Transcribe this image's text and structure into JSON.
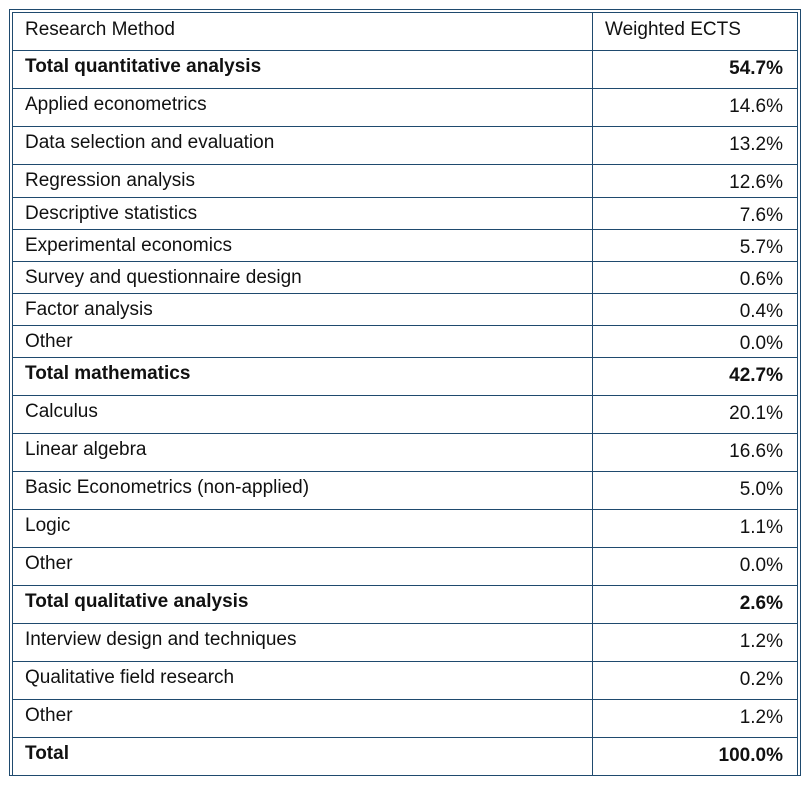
{
  "table": {
    "header": {
      "method": "Research Method",
      "value": "Weighted ECTS"
    },
    "rows": [
      {
        "label": "Total quantitative analysis",
        "value": "54.7%",
        "total": true
      },
      {
        "label": "Applied econometrics",
        "value": "14.6%",
        "total": false
      },
      {
        "label": "Data selection and evaluation",
        "value": "13.2%",
        "total": false
      },
      {
        "label": "Regression analysis",
        "value": "12.6%",
        "total": false
      },
      {
        "label": "Descriptive statistics",
        "value": "7.6%",
        "total": false
      },
      {
        "label": "Experimental economics",
        "value": "5.7%",
        "total": false
      },
      {
        "label": "Survey and questionnaire design",
        "value": "0.6%",
        "total": false
      },
      {
        "label": "Factor analysis",
        "value": "0.4%",
        "total": false
      },
      {
        "label": "Other",
        "value": "0.0%",
        "total": false
      },
      {
        "label": "Total mathematics",
        "value": "42.7%",
        "total": true
      },
      {
        "label": "Calculus",
        "value": "20.1%",
        "total": false
      },
      {
        "label": "Linear algebra",
        "value": "16.6%",
        "total": false
      },
      {
        "label": "Basic Econometrics (non-applied)",
        "value": "5.0%",
        "total": false
      },
      {
        "label": "Logic",
        "value": "1.1%",
        "total": false
      },
      {
        "label": "Other",
        "value": "0.0%",
        "total": false
      },
      {
        "label": "Total qualitative analysis",
        "value": "2.6%",
        "total": true
      },
      {
        "label": "Interview design and techniques",
        "value": "1.2%",
        "total": false
      },
      {
        "label": "Qualitative field research",
        "value": "0.2%",
        "total": false
      },
      {
        "label": "Other",
        "value": "1.2%",
        "total": false
      },
      {
        "label": "Total",
        "value": "100.0%",
        "total": true
      }
    ]
  }
}
